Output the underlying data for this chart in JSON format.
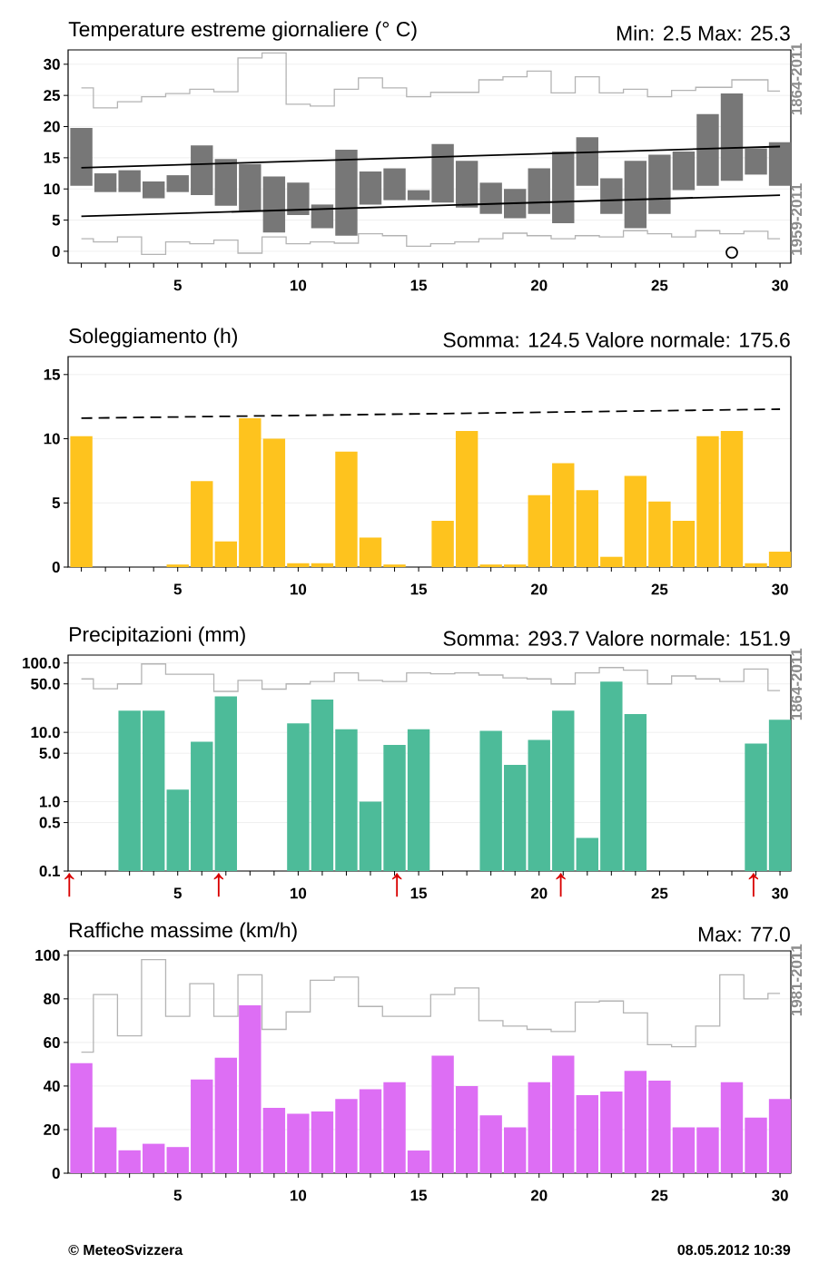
{
  "chart_data": [
    {
      "type": "bar",
      "title": "Temperature estreme giornaliere (° C)",
      "subtitle": "Min: 2.5   Max: 25.3",
      "x": [
        1,
        2,
        3,
        4,
        5,
        6,
        7,
        8,
        9,
        10,
        11,
        12,
        13,
        14,
        15,
        16,
        17,
        18,
        19,
        20,
        21,
        22,
        23,
        24,
        25,
        26,
        27,
        28,
        29,
        30
      ],
      "xlim": [
        0.45,
        30.45
      ],
      "xticks": [
        {
          "value": 1,
          "label": null
        },
        {
          "value": 2,
          "label": null
        },
        {
          "value": 3,
          "label": null
        },
        {
          "value": 4,
          "label": null
        },
        5,
        {
          "value": 6,
          "label": null
        },
        {
          "value": 7,
          "label": null
        },
        {
          "value": 8,
          "label": null
        },
        {
          "value": 9,
          "label": null
        },
        10,
        {
          "value": 11,
          "label": null
        },
        {
          "value": 12,
          "label": null
        },
        {
          "value": 13,
          "label": null
        },
        {
          "value": 14,
          "label": null
        },
        15,
        {
          "value": 16,
          "label": null
        },
        {
          "value": 17,
          "label": null
        },
        {
          "value": 18,
          "label": null
        },
        {
          "value": 19,
          "label": null
        },
        20,
        {
          "value": 21,
          "label": null
        },
        {
          "value": 22,
          "label": null
        },
        {
          "value": 23,
          "label": null
        },
        {
          "value": 24,
          "label": null
        },
        25,
        {
          "value": 26,
          "label": null
        },
        {
          "value": 27,
          "label": null
        },
        {
          "value": 28,
          "label": null
        },
        {
          "value": 29,
          "label": null
        },
        30
      ],
      "ylim": [
        -1.9,
        32.3
      ],
      "yticks": [
        0,
        5,
        10,
        15,
        20,
        25,
        30
      ],
      "grid": "y",
      "series": [
        {
          "type": "step",
          "color": "#b4b4b4",
          "values": [
            26.2,
            23,
            24,
            24.8,
            25.3,
            26,
            25.6,
            31,
            31.8,
            23.6,
            23.3,
            26,
            27.8,
            26.2,
            24.8,
            25.5,
            25.5,
            27.5,
            28,
            28.9,
            25.4,
            28,
            25.4,
            26,
            24.8,
            25.8,
            26.3,
            null,
            27.5,
            25.7
          ]
        },
        {
          "type": "step",
          "color": "#b4b4b4",
          "values": [
            2.0,
            1.5,
            2.3,
            -0.5,
            1.5,
            1.2,
            1.8,
            -0.3,
            2.3,
            1.2,
            1.5,
            1.3,
            2.8,
            2.5,
            0.8,
            1.2,
            1.5,
            2.0,
            2.9,
            2.5,
            2.0,
            2.5,
            2.3,
            3.3,
            2.8,
            2.3,
            3.3,
            2.8,
            3.2,
            2.0
          ]
        },
        {
          "color": "#777777",
          "base": [
            10.5,
            9.5,
            9.5,
            8.5,
            9.5,
            9.0,
            7.3,
            6.5,
            3.0,
            5.8,
            3.7,
            2.5,
            7.5,
            8.2,
            8.2,
            7.8,
            7.0,
            6.0,
            5.3,
            6.0,
            4.5,
            10.5,
            6.0,
            3.7,
            6.0,
            9.8,
            10.5,
            11.3,
            12.3,
            10.5
          ],
          "values": [
            9.3,
            3.0,
            3.5,
            2.7,
            2.7,
            8.0,
            7.5,
            7.5,
            9.0,
            5.2,
            3.8,
            13.8,
            5.3,
            5.1,
            1.6,
            9.4,
            7.5,
            5.0,
            4.7,
            7.3,
            11.5,
            7.8,
            5.7,
            10.8,
            9.5,
            6.2,
            11.5,
            14.0,
            4.2,
            7.0
          ]
        },
        {
          "type": "line",
          "color": "#000000",
          "x": [
            1,
            30
          ],
          "values": [
            13.4,
            16.8
          ]
        },
        {
          "type": "line",
          "color": "#000000",
          "x": [
            1,
            30
          ],
          "values": [
            5.6,
            9.0
          ]
        },
        {
          "type": "scatter",
          "color": "#000000",
          "marker": "circle",
          "x": [
            28
          ],
          "values": [
            -0.2
          ]
        }
      ],
      "annotations": [
        "1864-2011",
        "1959-2011"
      ]
    },
    {
      "type": "bar",
      "title": "Soleggiamento (h)",
      "subtitle": "Somma: 124.5   Valore normale: 175.6",
      "x": [
        1,
        2,
        3,
        4,
        5,
        6,
        7,
        8,
        9,
        10,
        11,
        12,
        13,
        14,
        15,
        16,
        17,
        18,
        19,
        20,
        21,
        22,
        23,
        24,
        25,
        26,
        27,
        28,
        29,
        30
      ],
      "xlim": [
        0.45,
        30.45
      ],
      "xticks": [
        {
          "value": 1,
          "label": null
        },
        {
          "value": 2,
          "label": null
        },
        {
          "value": 3,
          "label": null
        },
        {
          "value": 4,
          "label": null
        },
        5,
        {
          "value": 6,
          "label": null
        },
        {
          "value": 7,
          "label": null
        },
        {
          "value": 8,
          "label": null
        },
        {
          "value": 9,
          "label": null
        },
        10,
        {
          "value": 11,
          "label": null
        },
        {
          "value": 12,
          "label": null
        },
        {
          "value": 13,
          "label": null
        },
        {
          "value": 14,
          "label": null
        },
        15,
        {
          "value": 16,
          "label": null
        },
        {
          "value": 17,
          "label": null
        },
        {
          "value": 18,
          "label": null
        },
        {
          "value": 19,
          "label": null
        },
        20,
        {
          "value": 21,
          "label": null
        },
        {
          "value": 22,
          "label": null
        },
        {
          "value": 23,
          "label": null
        },
        {
          "value": 24,
          "label": null
        },
        25,
        {
          "value": 26,
          "label": null
        },
        {
          "value": 27,
          "label": null
        },
        {
          "value": 28,
          "label": null
        },
        {
          "value": 29,
          "label": null
        },
        30
      ],
      "ylim": [
        0,
        16.4
      ],
      "yticks": [
        0,
        5,
        10,
        15
      ],
      "grid": "y",
      "series": [
        {
          "color": "#fec31e",
          "values": [
            10.2,
            0,
            0,
            0,
            0.2,
            6.7,
            2.0,
            11.6,
            10.0,
            0.3,
            0.3,
            9.0,
            2.3,
            0.2,
            0,
            3.6,
            10.6,
            0.2,
            0.2,
            5.6,
            8.1,
            6.0,
            0.8,
            7.1,
            5.1,
            3.6,
            10.2,
            10.6,
            0.3,
            1.2
          ]
        },
        {
          "type": "line",
          "color": "#000000",
          "line_style": "dashed",
          "x": [
            1,
            30
          ],
          "values": [
            11.6,
            12.3
          ]
        }
      ]
    },
    {
      "type": "bar",
      "title": "Precipitazioni (mm)",
      "subtitle": "Somma: 293.7   Valore normale: 151.9",
      "x": [
        1,
        2,
        3,
        4,
        5,
        6,
        7,
        8,
        9,
        10,
        11,
        12,
        13,
        14,
        15,
        16,
        17,
        18,
        19,
        20,
        21,
        22,
        23,
        24,
        25,
        26,
        27,
        28,
        29,
        30
      ],
      "xlim": [
        0.45,
        30.45
      ],
      "xticks": [
        {
          "value": 1,
          "label": null
        },
        {
          "value": 2,
          "label": null
        },
        {
          "value": 3,
          "label": null
        },
        {
          "value": 4,
          "label": null
        },
        5,
        {
          "value": 6,
          "label": null
        },
        {
          "value": 7,
          "label": null
        },
        {
          "value": 8,
          "label": null
        },
        {
          "value": 9,
          "label": null
        },
        10,
        {
          "value": 11,
          "label": null
        },
        {
          "value": 12,
          "label": null
        },
        {
          "value": 13,
          "label": null
        },
        {
          "value": 14,
          "label": null
        },
        15,
        {
          "value": 16,
          "label": null
        },
        {
          "value": 17,
          "label": null
        },
        {
          "value": 18,
          "label": null
        },
        {
          "value": 19,
          "label": null
        },
        20,
        {
          "value": 21,
          "label": null
        },
        {
          "value": 22,
          "label": null
        },
        {
          "value": 23,
          "label": null
        },
        {
          "value": 24,
          "label": null
        },
        25,
        {
          "value": 26,
          "label": null
        },
        {
          "value": 27,
          "label": null
        },
        {
          "value": 28,
          "label": null
        },
        {
          "value": 29,
          "label": null
        },
        30
      ],
      "log": true,
      "ylim": [
        0.1,
        130
      ],
      "yticks": [
        {
          "value": 0.1,
          "label": "0.1"
        },
        {
          "value": 0.5,
          "label": "0.5"
        },
        {
          "value": 1,
          "label": "1.0"
        },
        {
          "value": 5,
          "label": "5.0"
        },
        {
          "value": 10,
          "label": "10.0"
        },
        {
          "value": 50,
          "label": "50.0"
        },
        {
          "value": 100,
          "label": "100.0"
        }
      ],
      "grid": "y",
      "series": [
        {
          "type": "step",
          "color": "#b4b4b4",
          "values": [
            59,
            42.5,
            50,
            97,
            69,
            69,
            39,
            56,
            42,
            50,
            54,
            72,
            56,
            54,
            72,
            70,
            72,
            67,
            61,
            59,
            50,
            72,
            86,
            79,
            50,
            65,
            59,
            54,
            82,
            40
          ]
        },
        {
          "color": "#4dbb99",
          "values": [
            null,
            null,
            20.6,
            20.6,
            1.5,
            7.3,
            33,
            null,
            null,
            13.5,
            29.8,
            11.1,
            1.0,
            6.6,
            11.1,
            null,
            null,
            10.5,
            3.4,
            7.8,
            20.6,
            0.3,
            53.7,
            18.3,
            null,
            null,
            null,
            null,
            6.9,
            15.2
          ]
        }
      ],
      "annotations": [
        "1864-2011",
        "↑",
        "↑",
        "↑",
        "↑",
        "↑"
      ]
    },
    {
      "type": "bar",
      "title": "Raffiche massime (km/h)",
      "subtitle": "Max: 77.0",
      "x": [
        1,
        2,
        3,
        4,
        5,
        6,
        7,
        8,
        9,
        10,
        11,
        12,
        13,
        14,
        15,
        16,
        17,
        18,
        19,
        20,
        21,
        22,
        23,
        24,
        25,
        26,
        27,
        28,
        29,
        30
      ],
      "xlim": [
        0.45,
        30.45
      ],
      "xticks": [
        {
          "value": 1,
          "label": null
        },
        {
          "value": 2,
          "label": null
        },
        {
          "value": 3,
          "label": null
        },
        {
          "value": 4,
          "label": null
        },
        5,
        {
          "value": 6,
          "label": null
        },
        {
          "value": 7,
          "label": null
        },
        {
          "value": 8,
          "label": null
        },
        {
          "value": 9,
          "label": null
        },
        10,
        {
          "value": 11,
          "label": null
        },
        {
          "value": 12,
          "label": null
        },
        {
          "value": 13,
          "label": null
        },
        {
          "value": 14,
          "label": null
        },
        15,
        {
          "value": 16,
          "label": null
        },
        {
          "value": 17,
          "label": null
        },
        {
          "value": 18,
          "label": null
        },
        {
          "value": 19,
          "label": null
        },
        20,
        {
          "value": 21,
          "label": null
        },
        {
          "value": 22,
          "label": null
        },
        {
          "value": 23,
          "label": null
        },
        {
          "value": 24,
          "label": null
        },
        25,
        {
          "value": 26,
          "label": null
        },
        {
          "value": 27,
          "label": null
        },
        {
          "value": 28,
          "label": null
        },
        {
          "value": 29,
          "label": null
        },
        30
      ],
      "ylim": [
        0,
        102
      ],
      "yticks": [
        0,
        20,
        40,
        60,
        80,
        100
      ],
      "grid": "y",
      "series": [
        {
          "type": "step",
          "color": "#b4b4b4",
          "values": [
            55.5,
            82,
            63,
            98,
            72,
            87,
            72,
            91,
            66,
            74,
            88.5,
            90,
            76.5,
            72,
            72,
            82,
            85,
            70,
            67.5,
            66,
            65,
            78.5,
            79,
            73.5,
            59,
            58,
            67.5,
            91,
            80,
            82.5
          ]
        },
        {
          "color": "#dd6ef4",
          "values": [
            50.5,
            21,
            10.5,
            13.5,
            12,
            43,
            53,
            77.0,
            30,
            27.3,
            28.3,
            34,
            38.5,
            41.7,
            10.4,
            53.9,
            40,
            26.5,
            21,
            41.7,
            53.9,
            35.8,
            37.5,
            47,
            42.5,
            21,
            21,
            41.7,
            25.5,
            34
          ]
        }
      ],
      "annotations": [
        "1981-2011",
        "© MeteoSvizzera",
        "08.05.2012 10:39"
      ]
    }
  ]
}
